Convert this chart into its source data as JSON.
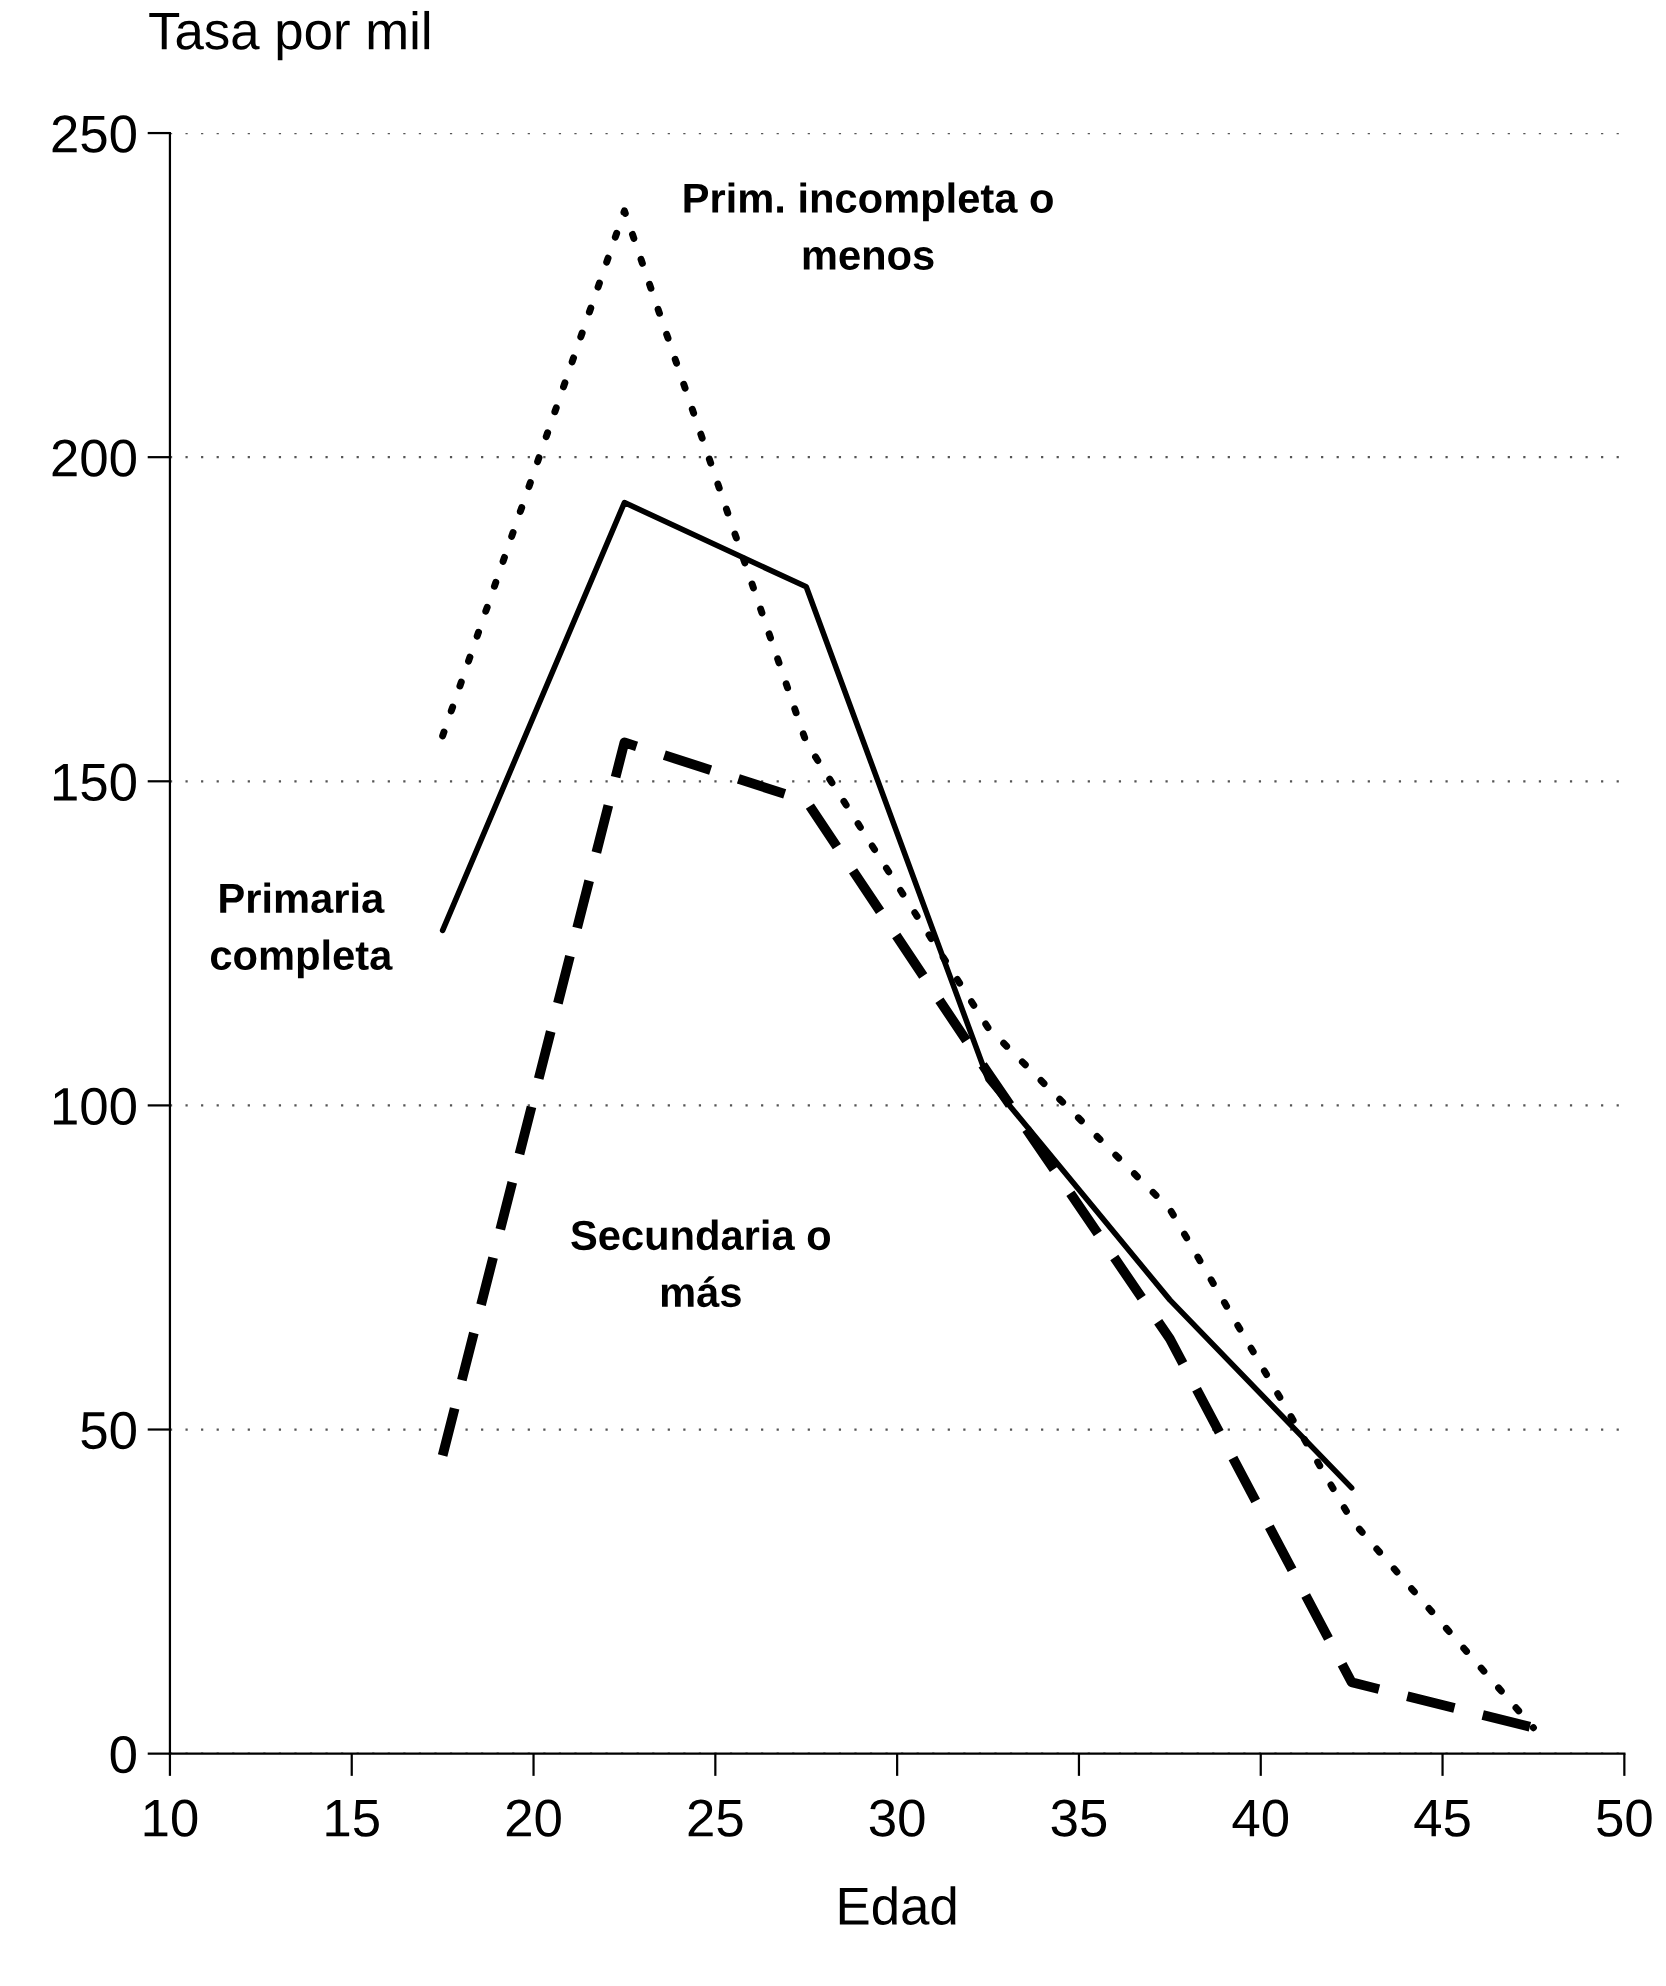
{
  "chart_data": {
    "type": "line",
    "ylabel": "Tasa por mil",
    "xlabel": "Edad",
    "x": [
      17.5,
      22.5,
      27.5,
      32.5,
      37.5,
      42.5,
      47.5
    ],
    "series": [
      {
        "name": "Prim. incompleta o menos",
        "color": "#000000",
        "line_style": "dotted",
        "values": [
          157,
          238,
          156,
          112,
          84,
          36,
          4
        ]
      },
      {
        "name": "Primaria completa",
        "color": "#000000",
        "line_style": "solid",
        "values": [
          127,
          193,
          180,
          104,
          70,
          41,
          null
        ]
      },
      {
        "name": "Secundaria o más",
        "color": "#000000",
        "line_style": "dashed",
        "values": [
          46,
          156,
          147,
          105,
          64,
          11,
          4
        ]
      }
    ],
    "xlim": [
      10,
      50
    ],
    "xticks": [
      10,
      15,
      20,
      25,
      30,
      35,
      40,
      45,
      50
    ],
    "ylim": [
      0,
      250
    ],
    "yticks": [
      0,
      50,
      100,
      150,
      200,
      250
    ],
    "grid": "y",
    "legend": false,
    "marker": "none"
  }
}
